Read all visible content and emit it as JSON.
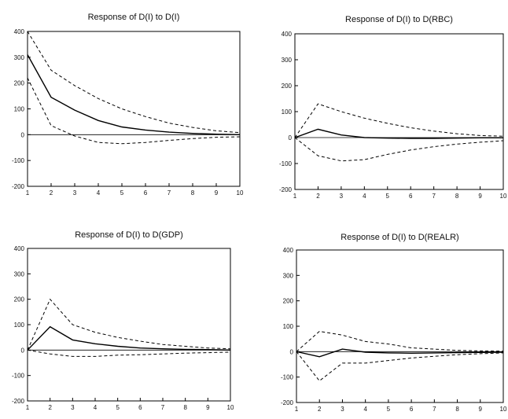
{
  "chart_data": [
    {
      "type": "line",
      "title": "Response of D(I) to D(I)",
      "x": [
        1,
        2,
        3,
        4,
        5,
        6,
        7,
        8,
        9,
        10
      ],
      "xticks": [
        "1",
        "2",
        "3",
        "4",
        "5",
        "6",
        "7",
        "8",
        "9",
        "10"
      ],
      "yticks": [
        "-200",
        "-100",
        "0",
        "100",
        "200",
        "300",
        "400"
      ],
      "ylim": [
        -200,
        400
      ],
      "series": [
        {
          "role": "response",
          "style": "solid",
          "values": [
            310,
            145,
            95,
            55,
            30,
            18,
            10,
            5,
            2,
            0
          ]
        },
        {
          "role": "upper",
          "style": "dashed",
          "values": [
            400,
            250,
            190,
            140,
            100,
            70,
            45,
            28,
            15,
            8
          ]
        },
        {
          "role": "lower",
          "style": "dashed",
          "values": [
            220,
            35,
            -5,
            -30,
            -35,
            -30,
            -22,
            -15,
            -10,
            -8
          ]
        }
      ]
    },
    {
      "type": "line",
      "title": "Response of D(I) to D(RBC)",
      "x": [
        1,
        2,
        3,
        4,
        5,
        6,
        7,
        8,
        9,
        10
      ],
      "xticks": [
        "1",
        "2",
        "3",
        "4",
        "5",
        "6",
        "7",
        "8",
        "9",
        "10"
      ],
      "yticks": [
        "-200",
        "-100",
        "0",
        "100",
        "200",
        "300",
        "400"
      ],
      "ylim": [
        -200,
        400
      ],
      "series": [
        {
          "role": "response",
          "style": "solid",
          "values": [
            0,
            32,
            10,
            0,
            -2,
            -3,
            -3,
            -2,
            -1,
            -1
          ]
        },
        {
          "role": "upper",
          "style": "dashed",
          "values": [
            0,
            130,
            100,
            75,
            55,
            38,
            25,
            15,
            8,
            5
          ]
        },
        {
          "role": "lower",
          "style": "dashed",
          "values": [
            0,
            -70,
            -90,
            -85,
            -65,
            -48,
            -35,
            -25,
            -18,
            -12
          ]
        }
      ]
    },
    {
      "type": "line",
      "title": "Response of D(I) to D(GDP)",
      "x": [
        1,
        2,
        3,
        4,
        5,
        6,
        7,
        8,
        9,
        10
      ],
      "xticks": [
        "1",
        "2",
        "3",
        "4",
        "5",
        "6",
        "7",
        "8",
        "9",
        "10"
      ],
      "yticks": [
        "-200",
        "-100",
        "0",
        "100",
        "200",
        "300",
        "400"
      ],
      "ylim": [
        -200,
        400
      ],
      "series": [
        {
          "role": "response",
          "style": "solid",
          "values": [
            0,
            92,
            40,
            25,
            15,
            8,
            5,
            3,
            2,
            0
          ]
        },
        {
          "role": "upper",
          "style": "dashed",
          "values": [
            0,
            200,
            100,
            70,
            50,
            35,
            22,
            15,
            8,
            5
          ]
        },
        {
          "role": "lower",
          "style": "dashed",
          "values": [
            0,
            -15,
            -25,
            -25,
            -20,
            -18,
            -15,
            -12,
            -10,
            -8
          ]
        }
      ]
    },
    {
      "type": "line",
      "title": "Response of D(I) to D(REALR)",
      "x": [
        1,
        2,
        3,
        4,
        5,
        6,
        7,
        8,
        9,
        10
      ],
      "xticks": [
        "1",
        "2",
        "3",
        "4",
        "5",
        "6",
        "7",
        "8",
        "9",
        "10"
      ],
      "yticks": [
        "-200",
        "-100",
        "0",
        "100",
        "200",
        "300",
        "400"
      ],
      "ylim": [
        -200,
        400
      ],
      "series": [
        {
          "role": "response",
          "style": "solid",
          "values": [
            0,
            -20,
            10,
            -2,
            -5,
            -6,
            -5,
            -4,
            -3,
            -2
          ]
        },
        {
          "role": "upper",
          "style": "dashed",
          "values": [
            0,
            80,
            65,
            40,
            30,
            15,
            10,
            5,
            3,
            2
          ]
        },
        {
          "role": "lower",
          "style": "dashed",
          "values": [
            0,
            -115,
            -45,
            -45,
            -35,
            -25,
            -18,
            -12,
            -8,
            -5
          ]
        }
      ]
    }
  ]
}
